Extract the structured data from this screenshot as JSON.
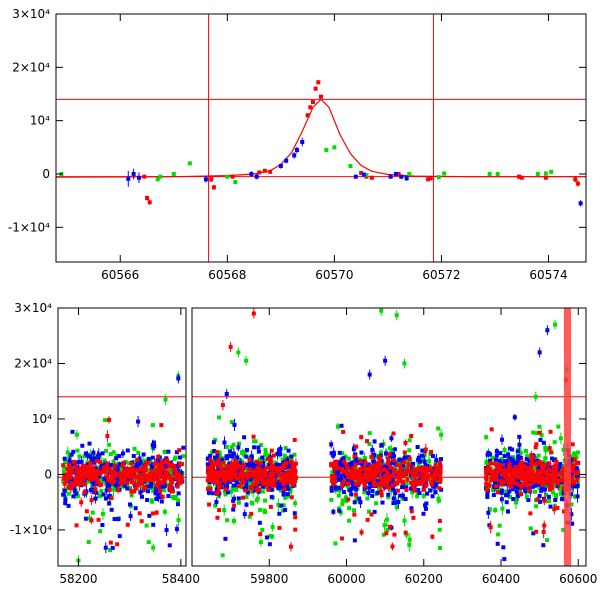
{
  "chart_data": [
    {
      "type": "scatter",
      "title": "",
      "xlabel": "",
      "ylabel": "",
      "xlim": [
        60564.8,
        60574.7
      ],
      "ylim": [
        -16500,
        30000
      ],
      "x_ticks": [
        60566,
        60568,
        60570,
        60572,
        60574
      ],
      "x_tick_labels": [
        "60566",
        "60568",
        "60570",
        "60572",
        "60574"
      ],
      "y_ticks": [
        -10000,
        0,
        10000,
        20000,
        30000
      ],
      "y_tick_labels": [
        "-1×10⁴",
        "0",
        "10⁴",
        "2×10⁴",
        "3×10⁴"
      ],
      "grid": false,
      "colors": {
        "red": "#ff0000",
        "green": "#00dd00",
        "blue": "#0000ff",
        "model": "#ff0000"
      },
      "hlines": [
        14000,
        -500
      ],
      "vlines": [
        60567.65,
        60571.85
      ],
      "model_curve": {
        "name": "",
        "x": [
          60564.8,
          60567.0,
          60568.0,
          60568.5,
          60568.8,
          60569.0,
          60569.2,
          60569.4,
          60569.6,
          60569.75,
          60569.9,
          60570.1,
          60570.3,
          60570.5,
          60570.7,
          60571.0,
          60571.5,
          60572.5,
          60574.7
        ],
        "y": [
          -600,
          -500,
          -300,
          0,
          600,
          1800,
          4000,
          8000,
          12500,
          14000,
          12500,
          7500,
          3800,
          1600,
          500,
          -100,
          -400,
          -500,
          -500
        ]
      },
      "series": [
        {
          "color": "red",
          "x": [
            60566.45,
            60566.5,
            60566.55,
            60567.7,
            60567.75,
            60568.1,
            60568.6,
            60568.7,
            60568.8,
            60569.5,
            60569.55,
            60569.6,
            60569.65,
            60569.7,
            60569.75,
            60570.5,
            60570.6,
            60570.7,
            60571.2,
            60571.75,
            60571.8,
            60573.45,
            60573.5,
            60573.95,
            60574.5,
            60574.55
          ],
          "y": [
            -500,
            -4500,
            -5300,
            -1000,
            -2500,
            -500,
            300,
            600,
            400,
            11000,
            12500,
            13500,
            16000,
            17200,
            14500,
            200,
            -500,
            -700,
            0,
            -1000,
            -800,
            -500,
            -700,
            -700,
            -1000,
            -1800
          ],
          "err": [
            300,
            500,
            500,
            500,
            500,
            300,
            300,
            300,
            300,
            400,
            400,
            400,
            400,
            400,
            400,
            300,
            300,
            300,
            300,
            300,
            300,
            400,
            400,
            300,
            600,
            600
          ]
        },
        {
          "color": "green",
          "x": [
            60564.9,
            60566.7,
            60566.75,
            60567.0,
            60567.3,
            60568.0,
            60568.15,
            60569.85,
            60570.0,
            60570.3,
            60570.6,
            60571.4,
            60571.95,
            60572.05,
            60572.9,
            60573.05,
            60573.8,
            60573.95,
            60574.05
          ],
          "y": [
            0,
            -1000,
            -500,
            0,
            2000,
            -500,
            -1500,
            4500,
            5000,
            1500,
            -200,
            0,
            -600,
            100,
            0,
            0,
            0,
            100,
            400
          ],
          "err": [
            300,
            300,
            300,
            300,
            300,
            300,
            400,
            300,
            300,
            300,
            300,
            300,
            300,
            300,
            300,
            300,
            300,
            300,
            300
          ]
        },
        {
          "color": "blue",
          "x": [
            60566.15,
            60566.25,
            60566.35,
            60567.6,
            60568.45,
            60568.55,
            60569.0,
            60569.1,
            60569.25,
            60569.3,
            60569.4,
            60570.4,
            60570.55,
            60571.05,
            60571.15,
            60571.25,
            60571.35,
            60574.6
          ],
          "y": [
            -900,
            0,
            -700,
            -1000,
            0,
            -500,
            1500,
            2500,
            3500,
            4500,
            6000,
            -500,
            -100,
            -500,
            0,
            -500,
            -800,
            -5500
          ],
          "err": [
            1500,
            1000,
            1000,
            600,
            500,
            500,
            500,
            500,
            600,
            600,
            800,
            400,
            400,
            400,
            400,
            400,
            500,
            600
          ]
        }
      ]
    },
    {
      "type": "scatter",
      "title": "",
      "xlabel": "",
      "ylabel": "",
      "broken_axis": true,
      "xlim_segments": [
        [
          58160,
          58410
        ],
        [
          59600,
          60620
        ]
      ],
      "ylim": [
        -16500,
        30000
      ],
      "x_ticks": [
        58200,
        58400,
        59800,
        60000,
        60200,
        60400,
        60600
      ],
      "x_tick_labels": [
        "58200",
        "58400",
        "59800",
        "60000",
        "60200",
        "60400",
        "60600"
      ],
      "y_ticks": [
        -10000,
        0,
        10000,
        20000,
        30000
      ],
      "y_tick_labels": [
        "-1×10⁴",
        "0",
        "10⁴",
        "2×10⁴",
        "3×10⁴"
      ],
      "grid": false,
      "colors": {
        "red": "#ff0000",
        "green": "#00dd00",
        "blue": "#0000ff",
        "band": "#ff4040"
      },
      "hlines": [
        14000,
        -500
      ],
      "vband": {
        "x0": 60568,
        "x1": 60576
      },
      "season_ranges": [
        [
          58170,
          58405
        ],
        [
          59640,
          59870
        ],
        [
          59960,
          60245
        ],
        [
          60360,
          60600
        ]
      ],
      "outliers": [
        {
          "color": "red",
          "x": 59700,
          "y": 23000
        },
        {
          "color": "red",
          "x": 59760,
          "y": 29000
        },
        {
          "color": "green",
          "x": 59720,
          "y": 22000
        },
        {
          "color": "green",
          "x": 59740,
          "y": 20500
        },
        {
          "color": "blue",
          "x": 59690,
          "y": 14500
        },
        {
          "color": "red",
          "x": 59680,
          "y": 12500
        },
        {
          "color": "green",
          "x": 58395,
          "y": 17700
        },
        {
          "color": "blue",
          "x": 58395,
          "y": 17300
        },
        {
          "color": "green",
          "x": 58370,
          "y": 13500
        },
        {
          "color": "green",
          "x": 58200,
          "y": -15500
        },
        {
          "color": "green",
          "x": 60090,
          "y": 29500
        },
        {
          "color": "green",
          "x": 60130,
          "y": 28700
        },
        {
          "color": "green",
          "x": 60150,
          "y": 20000
        },
        {
          "color": "blue",
          "x": 60100,
          "y": 20500
        },
        {
          "color": "blue",
          "x": 60060,
          "y": 18000
        },
        {
          "color": "blue",
          "x": 60520,
          "y": 26000
        },
        {
          "color": "green",
          "x": 60540,
          "y": 27000
        },
        {
          "color": "blue",
          "x": 60500,
          "y": 22000
        },
        {
          "color": "red",
          "x": 60568,
          "y": 17000
        },
        {
          "color": "green",
          "x": 60570,
          "y": 19000
        },
        {
          "color": "green",
          "x": 60490,
          "y": 14000
        }
      ]
    }
  ]
}
